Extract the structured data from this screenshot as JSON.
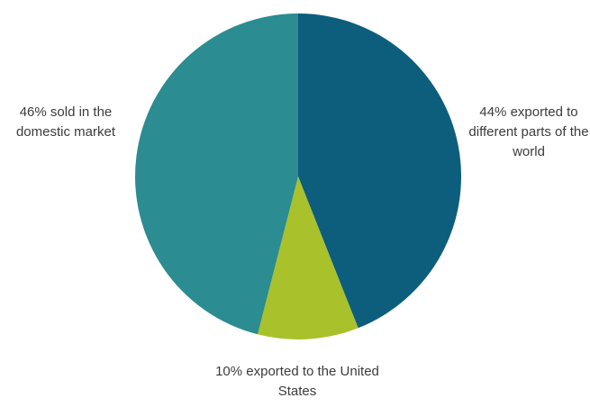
{
  "chart_data": {
    "type": "pie",
    "title": "",
    "slices": [
      {
        "label": "44% exported to different parts of the world",
        "value": 44,
        "color": "#0d5e7c"
      },
      {
        "label": "10% exported to the United States",
        "value": 10,
        "color": "#a9c12a"
      },
      {
        "label": "46% sold in the domestic market",
        "value": 46,
        "color": "#2b8c91"
      }
    ],
    "start": "top",
    "direction": "clockwise",
    "legend": "none"
  }
}
